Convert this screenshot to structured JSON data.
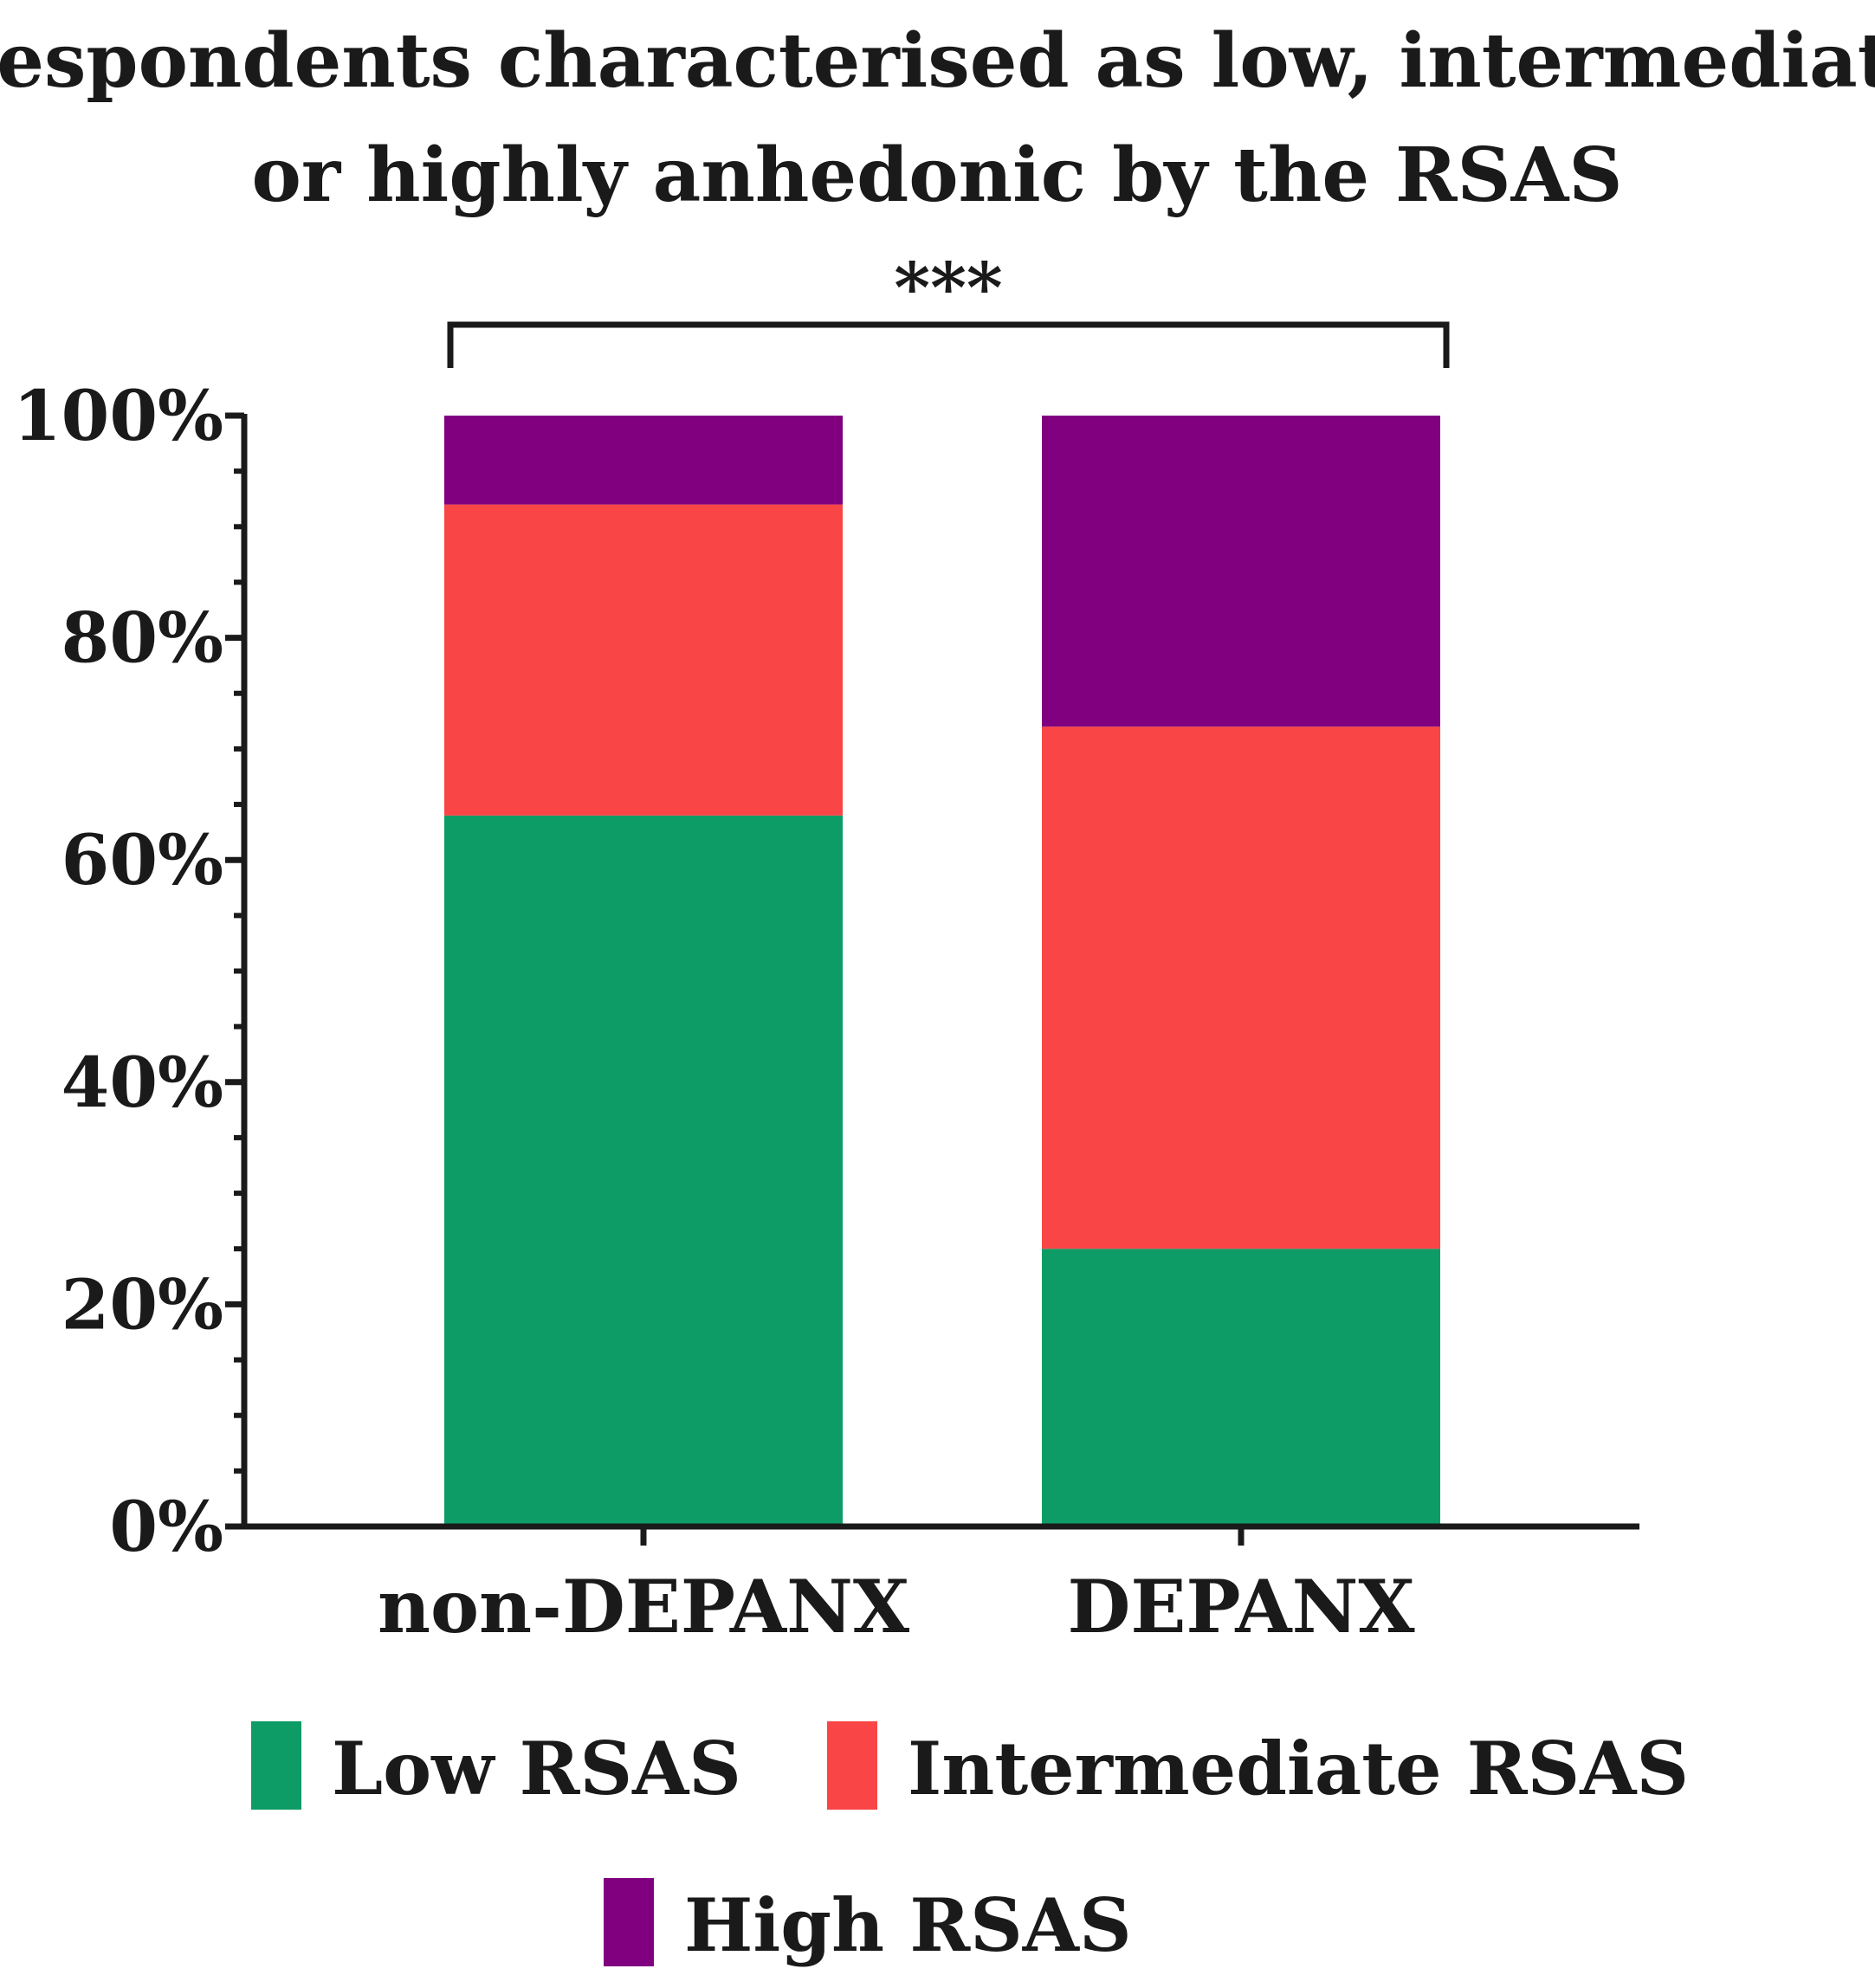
{
  "chart_data": {
    "type": "bar",
    "stacked": true,
    "title_lines": [
      "Respondents characterised as low, intermediate",
      "or highly anhedonic by the RSAS"
    ],
    "significance": "***",
    "categories": [
      "non-DEPANX",
      "DEPANX"
    ],
    "series": [
      {
        "name": "Low RSAS",
        "color": "#0e9c66",
        "values": [
          64,
          25
        ]
      },
      {
        "name": "Intermediate RSAS",
        "color": "#f94545",
        "values": [
          28,
          47
        ]
      },
      {
        "name": "High RSAS",
        "color": "#800080",
        "values": [
          8,
          28
        ]
      }
    ],
    "ylim": [
      0,
      100
    ],
    "yticks": [
      0,
      20,
      40,
      60,
      80,
      100
    ],
    "ytick_labels": [
      "0%",
      "20%",
      "40%",
      "60%",
      "80%",
      "100%"
    ],
    "xlabel": "",
    "ylabel": "",
    "legend_position": "bottom"
  }
}
